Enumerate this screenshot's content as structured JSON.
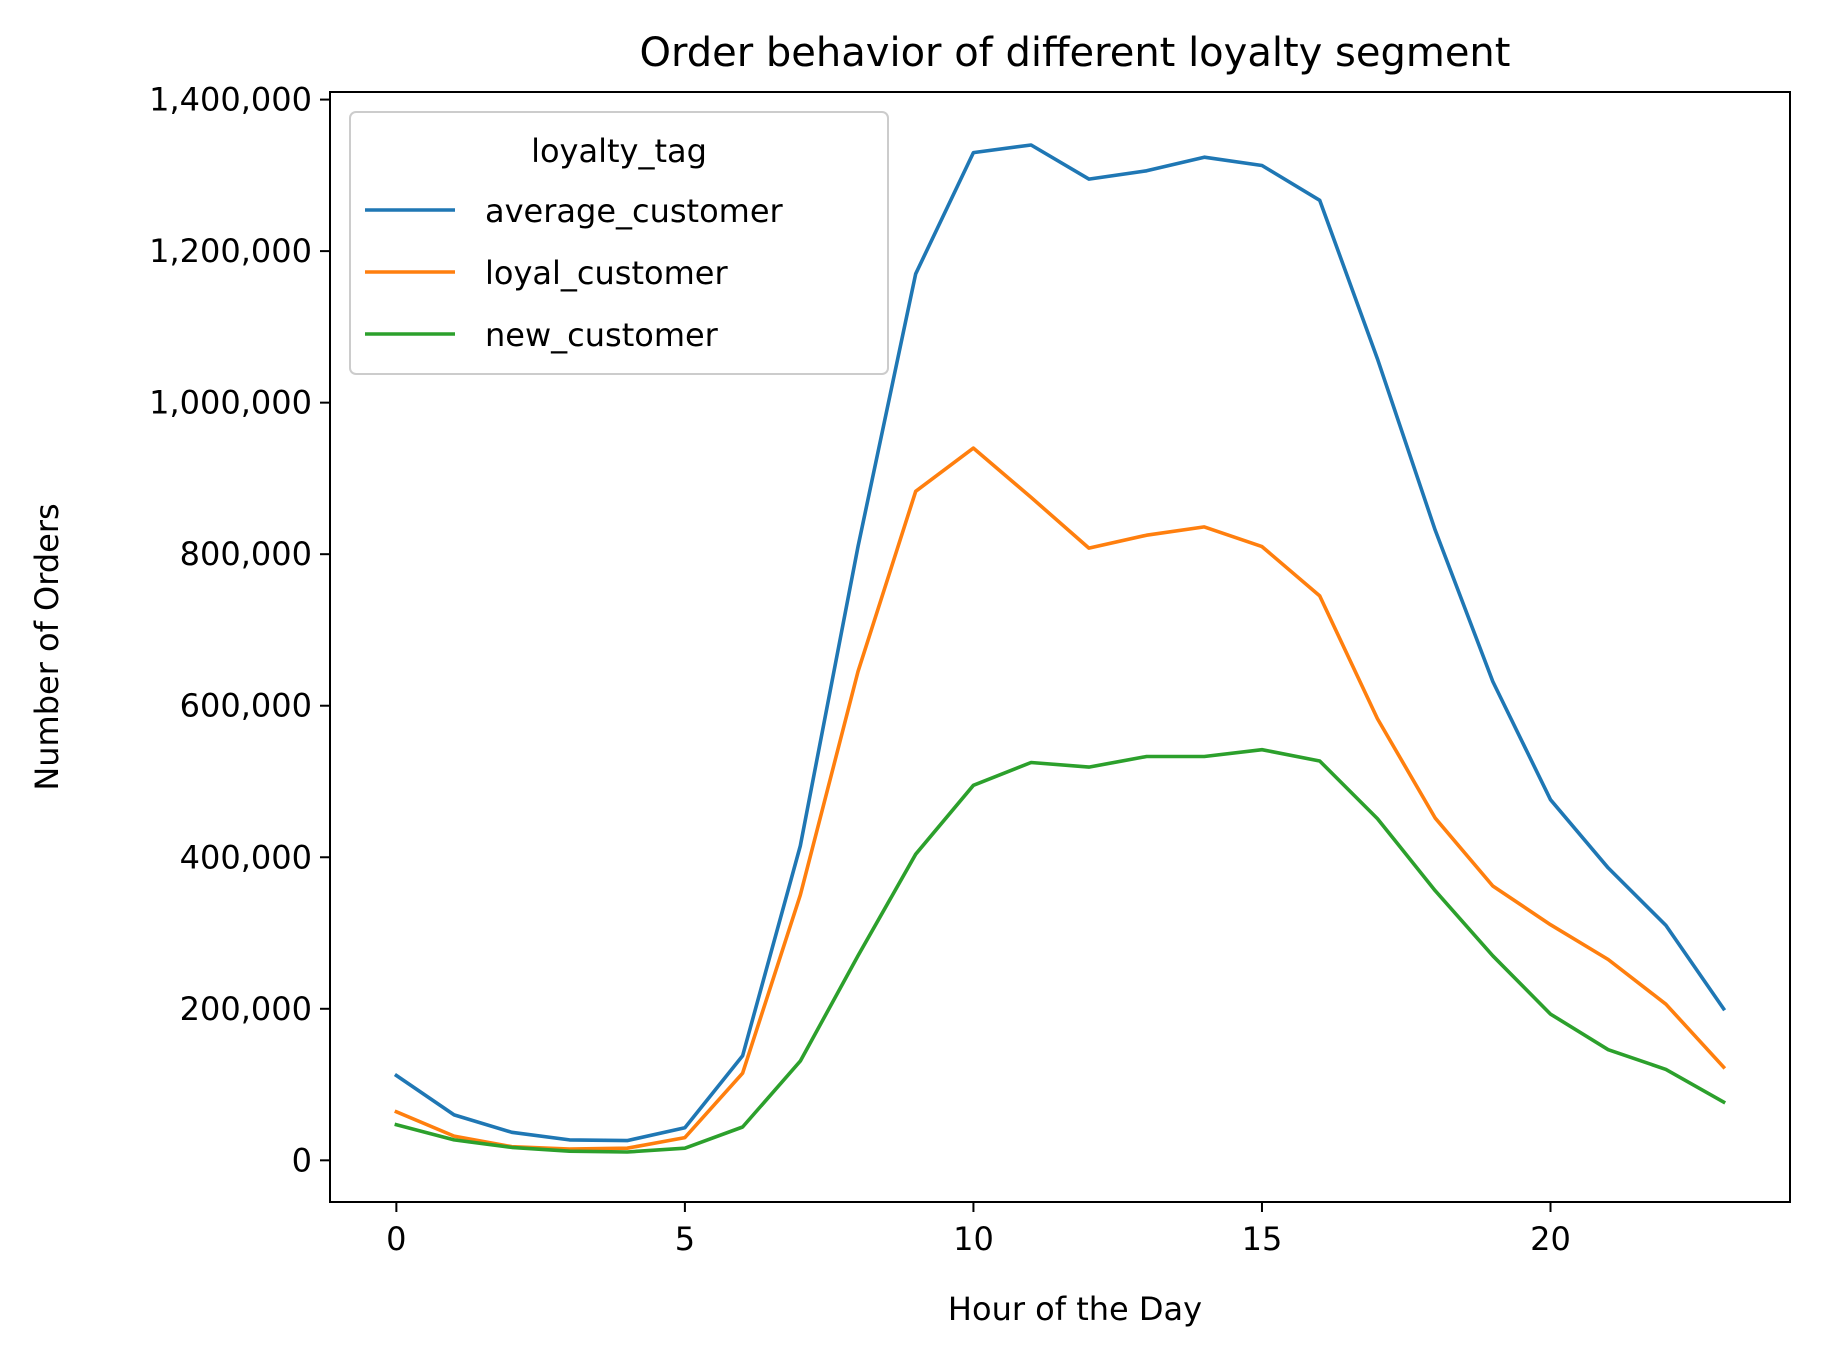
{
  "chart_data": {
    "type": "line",
    "title": "Order behavior of different loyalty segment",
    "xlabel": "Hour of the Day",
    "ylabel": "Number of Orders",
    "xlim": [
      -1.15,
      24.15
    ],
    "ylim": [
      -55000,
      1410000
    ],
    "xticks": [
      0,
      5,
      10,
      15,
      20
    ],
    "yticks": [
      0,
      200000,
      400000,
      600000,
      800000,
      1000000,
      1200000,
      1400000
    ],
    "ytick_labels": [
      "0",
      "200,000",
      "400,000",
      "600,000",
      "800,000",
      "1,000,000",
      "1,200,000",
      "1,400,000"
    ],
    "grid": false,
    "legend": {
      "title": "loyalty_tag",
      "placement": "top-left"
    },
    "x": [
      0,
      1,
      2,
      3,
      4,
      5,
      6,
      7,
      8,
      9,
      10,
      11,
      12,
      13,
      14,
      15,
      16,
      17,
      18,
      19,
      20,
      21,
      22,
      23
    ],
    "series": [
      {
        "name": "average_customer",
        "color": "#1f77b4",
        "values": [
          112000,
          60000,
          37000,
          27000,
          26000,
          43000,
          138000,
          415000,
          810000,
          1170000,
          1330000,
          1340000,
          1295000,
          1306000,
          1324000,
          1313000,
          1267000,
          1058000,
          832000,
          632000,
          476000,
          386000,
          310000,
          200000
        ]
      },
      {
        "name": "loyal_customer",
        "color": "#ff7f0e",
        "values": [
          64000,
          32000,
          18000,
          15000,
          16000,
          30000,
          115000,
          350000,
          645000,
          883000,
          940000,
          875000,
          808000,
          825000,
          836000,
          810000,
          745000,
          583000,
          452000,
          362000,
          311000,
          265000,
          206000,
          123000
        ]
      },
      {
        "name": "new_customer",
        "color": "#2ca02c",
        "values": [
          47000,
          27000,
          17000,
          12000,
          11000,
          16000,
          44000,
          131000,
          270000,
          404000,
          495000,
          525000,
          519000,
          533000,
          533000,
          542000,
          527000,
          451000,
          356000,
          270000,
          193000,
          146000,
          120000,
          77000
        ]
      }
    ]
  }
}
